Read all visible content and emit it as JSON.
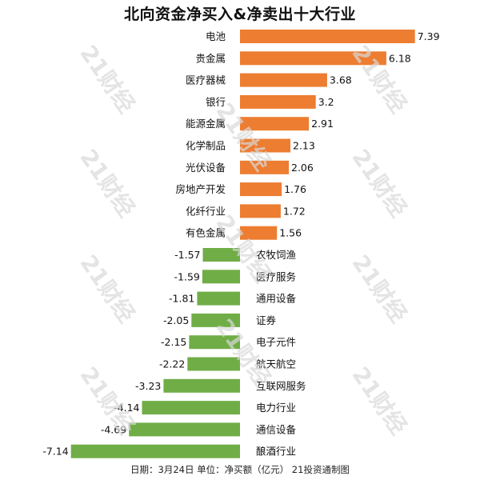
{
  "chart_data": {
    "type": "bar",
    "orientation": "horizontal",
    "title": "北向资金净买入&净卖出十大行业",
    "categories": [
      "电池",
      "贵金属",
      "医疗器械",
      "银行",
      "能源金属",
      "化学制品",
      "光伏设备",
      "房地产开发",
      "化纤行业",
      "有色金属",
      "农牧饲渔",
      "医疗服务",
      "通用设备",
      "证券",
      "电子元件",
      "航天航空",
      "互联网服务",
      "电力行业",
      "通信设备",
      "酿酒行业"
    ],
    "values": [
      7.39,
      6.18,
      3.68,
      3.2,
      2.91,
      2.13,
      2.06,
      1.76,
      1.72,
      1.56,
      -1.57,
      -1.59,
      -1.81,
      -2.05,
      -2.15,
      -2.22,
      -3.23,
      -4.14,
      -4.69,
      -7.14
    ],
    "value_labels": [
      "7.39",
      "6.18",
      "3.68",
      "3.2",
      "2.91",
      "2.13",
      "2.06",
      "1.76",
      "1.72",
      "1.56",
      "-1.57",
      "-1.59",
      "-1.81",
      "-2.05",
      "-2.15",
      "-2.22",
      "-3.23",
      "-4.14",
      "-4.69",
      "-7.14"
    ],
    "colors": {
      "positive": "#ED7D31",
      "negative": "#70AD47"
    },
    "xlim": [
      -7.14,
      7.39
    ],
    "grid": false,
    "legend": "none"
  },
  "footer": "日期：3月24日 单位：净买额（亿元） 21投资通制图",
  "watermark": "21财经"
}
